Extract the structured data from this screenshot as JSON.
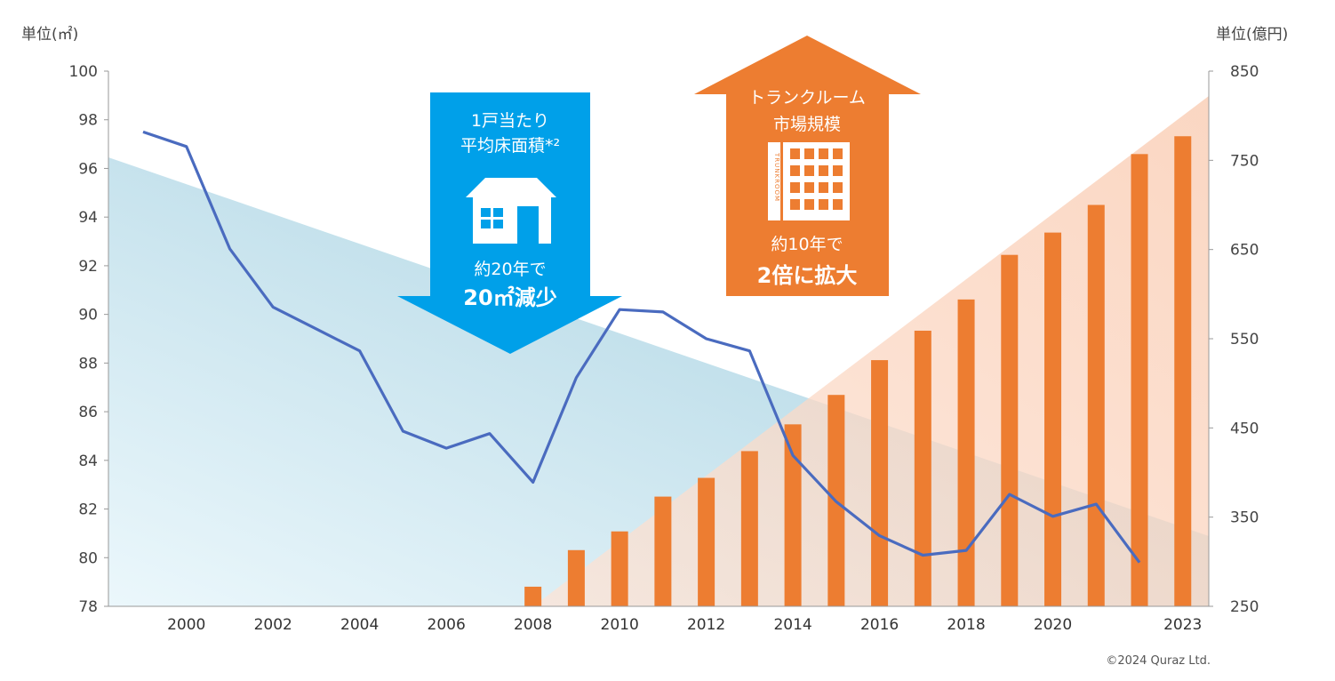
{
  "chart_data": {
    "type": "bar+line",
    "left_axis": {
      "unit_label": "単位(㎡)",
      "range": [
        78,
        100
      ],
      "ticks": [
        78,
        80,
        82,
        84,
        86,
        88,
        90,
        92,
        94,
        96,
        98,
        100
      ]
    },
    "right_axis": {
      "unit_label": "単位(億円)",
      "range": [
        250,
        850
      ],
      "ticks": [
        250,
        350,
        450,
        550,
        650,
        750,
        850
      ]
    },
    "x_tick_labels": [
      "2000",
      "2002",
      "2004",
      "2006",
      "2008",
      "2010",
      "2012",
      "2014",
      "2016",
      "2018",
      "2020",
      "2023"
    ],
    "x_tick_years": [
      2000,
      2002,
      2004,
      2006,
      2008,
      2010,
      2012,
      2014,
      2016,
      2018,
      2020,
      2023
    ],
    "line_series": {
      "axis": "left",
      "x": [
        1999,
        2000,
        2001,
        2002,
        2003,
        2004,
        2005,
        2006,
        2007,
        2008,
        2009,
        2010,
        2011,
        2012,
        2013,
        2014,
        2015,
        2016,
        2017,
        2018,
        2019,
        2020,
        2021,
        2022
      ],
      "values": [
        97.5,
        96.9,
        92.7,
        90.3,
        89.4,
        88.5,
        85.2,
        84.5,
        85.1,
        83.1,
        87.4,
        90.2,
        90.1,
        89.0,
        88.5,
        84.2,
        82.3,
        80.9,
        80.1,
        80.3,
        82.6,
        81.7,
        82.2,
        79.8
      ]
    },
    "bar_series": {
      "axis": "right",
      "x": [
        2008,
        2009,
        2010,
        2011,
        2012,
        2013,
        2014,
        2015,
        2016,
        2017,
        2018,
        2019,
        2020,
        2021,
        2022,
        2023
      ],
      "values": [
        272,
        313,
        334,
        373,
        394,
        424,
        454,
        487,
        526,
        559,
        594,
        644,
        669,
        700,
        757,
        777
      ]
    },
    "colors": {
      "line": "#4a6bbf",
      "bars": "#ed7d31",
      "blue_trend": "#a8d4e6",
      "orange_trend": "#fbd3bf"
    },
    "callouts": {
      "floor_area": {
        "title_lines": [
          "1戸当たり",
          "平均床面積*²"
        ],
        "sub": "約20年で",
        "emphasis": "20㎡減少",
        "color": "#00a0e9"
      },
      "market": {
        "title_lines": [
          "トランクルーム",
          "市場規模"
        ],
        "sub": "約10年で",
        "emphasis": "2倍に拡大",
        "building_label": "TRUNKROOM",
        "color": "#ed7d31"
      }
    },
    "copyright": "©2024 Quraz Ltd."
  }
}
